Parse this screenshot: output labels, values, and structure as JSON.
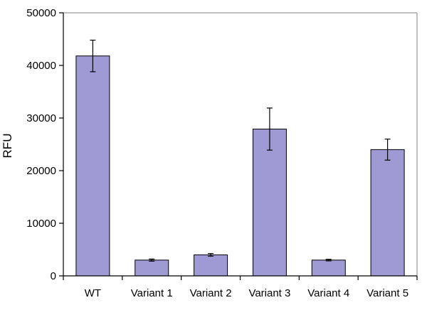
{
  "chart_data": {
    "type": "bar",
    "title": "",
    "xlabel": "",
    "ylabel": "RFU",
    "ylim": [
      0,
      50000
    ],
    "yticks": [
      0,
      10000,
      20000,
      30000,
      40000,
      50000
    ],
    "grid": false,
    "legend": "none",
    "categories": [
      "WT",
      "Variant 1",
      "Variant 2",
      "Variant 3",
      "Variant 4",
      "Variant 5"
    ],
    "series": [
      {
        "values": [
          41800,
          3000,
          4000,
          27900,
          3000,
          24000
        ],
        "error": [
          3000,
          200,
          250,
          4000,
          150,
          2000
        ],
        "color": "#9f9ad3"
      }
    ],
    "colors": {
      "bar_fill": "#9f9ad3",
      "bar_stroke": "#000000",
      "axis": "#000000",
      "frame": "#808080"
    }
  }
}
